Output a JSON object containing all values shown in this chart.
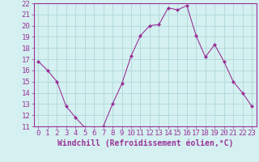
{
  "x": [
    0,
    1,
    2,
    3,
    4,
    5,
    6,
    7,
    8,
    9,
    10,
    11,
    12,
    13,
    14,
    15,
    16,
    17,
    18,
    19,
    20,
    21,
    22,
    23
  ],
  "y": [
    16.8,
    16.0,
    15.0,
    12.8,
    11.8,
    10.9,
    10.8,
    11.0,
    13.0,
    14.8,
    17.3,
    19.1,
    20.0,
    20.1,
    21.6,
    21.4,
    21.8,
    19.1,
    17.2,
    18.3,
    16.8,
    15.0,
    14.0,
    12.8
  ],
  "line_color": "#993399",
  "marker": "D",
  "marker_size": 2.0,
  "bg_color": "#d4f0f0",
  "grid_color": "#b0d8d8",
  "xlabel": "Windchill (Refroidissement éolien,°C)",
  "xlabel_fontsize": 7,
  "tick_fontsize": 6.5,
  "ylim": [
    11,
    22
  ],
  "xlim": [
    -0.5,
    23.5
  ],
  "yticks": [
    11,
    12,
    13,
    14,
    15,
    16,
    17,
    18,
    19,
    20,
    21,
    22
  ],
  "xticks": [
    0,
    1,
    2,
    3,
    4,
    5,
    6,
    7,
    8,
    9,
    10,
    11,
    12,
    13,
    14,
    15,
    16,
    17,
    18,
    19,
    20,
    21,
    22,
    23
  ]
}
